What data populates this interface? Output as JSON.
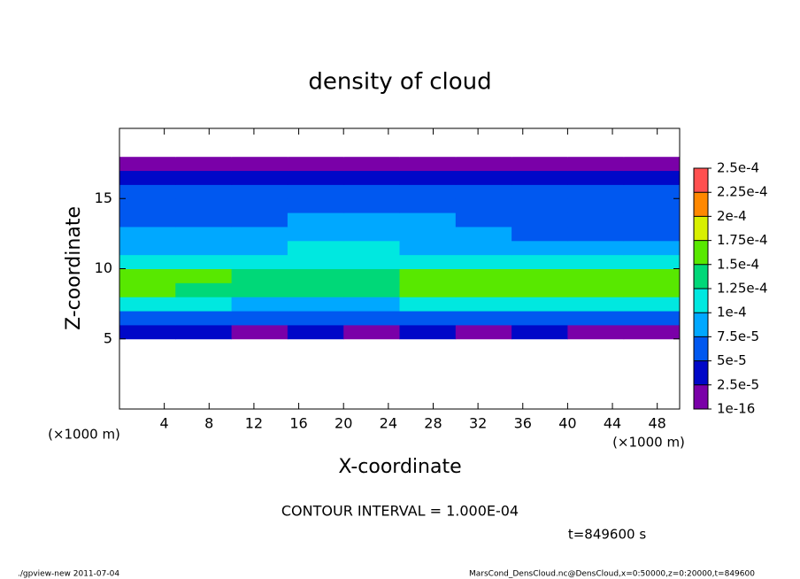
{
  "chart_data": {
    "type": "heatmap",
    "title": "density of cloud",
    "x_label": "X-coordinate",
    "y_label": "Z-coordinate",
    "x_unit": "(×1000 m)",
    "y_unit": "(×1000 m)",
    "xlim": [
      0,
      50
    ],
    "ylim": [
      0,
      20
    ],
    "xticks": [
      4,
      8,
      12,
      16,
      20,
      24,
      28,
      32,
      36,
      40,
      44,
      48
    ],
    "yticks": [
      5,
      10,
      15
    ],
    "x": [
      2.5,
      7.5,
      12.5,
      17.5,
      22.5,
      27.5,
      32.5,
      37.5,
      42.5,
      47.5
    ],
    "y": [
      0.5,
      1.5,
      2.5,
      3.5,
      4.5,
      5.5,
      6.5,
      7.5,
      8.5,
      9.5,
      10.5,
      11.5,
      12.5,
      13.5,
      14.5,
      15.5,
      16.5,
      17.5,
      18.5,
      19.5
    ],
    "values": [
      [
        0,
        0,
        0,
        0,
        0,
        0,
        0,
        0,
        0,
        0
      ],
      [
        0,
        0,
        0,
        0,
        0,
        0,
        0,
        0,
        0,
        0
      ],
      [
        0,
        0,
        0,
        0,
        0,
        0,
        0,
        0,
        0,
        0
      ],
      [
        0,
        0,
        0,
        0,
        0,
        0,
        0,
        0,
        0,
        0
      ],
      [
        0,
        0,
        0,
        0,
        0,
        0,
        0,
        0,
        0,
        0
      ],
      [
        3e-05,
        3e-05,
        2e-05,
        3e-05,
        2e-05,
        3e-05,
        2e-05,
        3e-05,
        2e-05,
        2e-05
      ],
      [
        6e-05,
        6.5e-05,
        6e-05,
        5.5e-05,
        6e-05,
        6e-05,
        6.5e-05,
        6e-05,
        6e-05,
        5.5e-05
      ],
      [
        0.000105,
        0.0001,
        9.5e-05,
        9e-05,
        9.5e-05,
        0.0001,
        0.000105,
        0.0001,
        0.000105,
        0.000105
      ],
      [
        0.000155,
        0.000145,
        0.000135,
        0.00013,
        0.000135,
        0.00015,
        0.00016,
        0.000155,
        0.000155,
        0.00016
      ],
      [
        0.000165,
        0.00015,
        0.00014,
        0.000135,
        0.000135,
        0.000155,
        0.000165,
        0.00016,
        0.000155,
        0.00016
      ],
      [
        0.00011,
        0.00011,
        0.000115,
        0.00012,
        0.00012,
        0.000115,
        0.0001,
        0.0001,
        0.0001,
        0.0001
      ],
      [
        8.5e-05,
        8.5e-05,
        9e-05,
        0.0001,
        0.000105,
        9.5e-05,
        8.5e-05,
        8.5e-05,
        8.5e-05,
        8e-05
      ],
      [
        7.5e-05,
        7.5e-05,
        8e-05,
        8.5e-05,
        9e-05,
        8.5e-05,
        7.5e-05,
        7e-05,
        7e-05,
        7e-05
      ],
      [
        7e-05,
        6.5e-05,
        6.5e-05,
        7.5e-05,
        8e-05,
        7.5e-05,
        6.5e-05,
        6e-05,
        6e-05,
        6e-05
      ],
      [
        6e-05,
        5.5e-05,
        5.5e-05,
        6.5e-05,
        7e-05,
        6.5e-05,
        6e-05,
        5.5e-05,
        5.5e-05,
        5.5e-05
      ],
      [
        5.5e-05,
        5e-05,
        5e-05,
        6e-05,
        6e-05,
        6e-05,
        5.5e-05,
        5e-05,
        5e-05,
        5e-05
      ],
      [
        4e-05,
        3.5e-05,
        3.5e-05,
        4e-05,
        4e-05,
        4e-05,
        4e-05,
        3.5e-05,
        3.5e-05,
        3.5e-05
      ],
      [
        1e-05,
        1e-05,
        1e-05,
        1e-05,
        1e-05,
        1e-05,
        1e-05,
        1e-05,
        1e-05,
        1e-05
      ],
      [
        0,
        0,
        0,
        0,
        0,
        0,
        0,
        0,
        0,
        0
      ],
      [
        0,
        0,
        0,
        0,
        0,
        0,
        0,
        0,
        0,
        0
      ]
    ],
    "colorbar": {
      "ticks": [
        1e-16,
        {
          "value": 2.5e-05,
          "label": "2.5e-5"
        },
        {
          "value": 5e-05,
          "label": "5e-5"
        },
        {
          "value": 7.5e-05,
          "label": "7.5e-5"
        },
        {
          "value": 0.0001,
          "label": "1e-4"
        },
        {
          "value": 0.000125,
          "label": "1.25e-4"
        },
        {
          "value": 0.00015,
          "label": "1.5e-4"
        },
        {
          "value": 0.000175,
          "label": "1.75e-4"
        },
        {
          "value": 0.0002,
          "label": "2e-4"
        },
        {
          "value": 0.000225,
          "label": "2.25e-4"
        },
        {
          "value": 0.00025,
          "label": "2.5e-4"
        }
      ],
      "colors": [
        "#7a00a8",
        "#0008c8",
        "#0058f0",
        "#00a8ff",
        "#00e8e0",
        "#00d878",
        "#58e800",
        "#d8f000",
        "#ff8800",
        "#ff5050"
      ]
    },
    "contour_note": "CONTOUR INTERVAL = 1.000E-04",
    "time_note": "t=849600 s",
    "footer_left": "./gpview-new  2011-07-04",
    "footer_right": "MarsCond_DensCloud.nc@DensCloud,x=0:50000,z=0:20000,t=849600"
  }
}
